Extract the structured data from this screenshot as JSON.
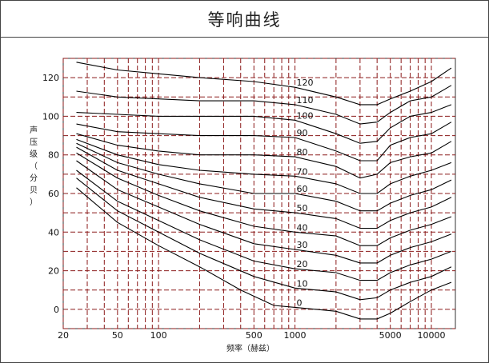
{
  "chart_data": {
    "type": "line",
    "title": "等响曲线",
    "xlabel": "频率（赫兹）",
    "ylabel": "声压级（分贝）",
    "xscale": "log",
    "xlim": [
      20,
      15000
    ],
    "ylim": [
      -10,
      130
    ],
    "grid": true,
    "grid_color": "#8b1a1a",
    "line_color": "#000000",
    "x_tick_labels": [
      {
        "value": 20,
        "label": "20"
      },
      {
        "value": 50,
        "label": "50"
      },
      {
        "value": 100,
        "label": "100"
      },
      {
        "value": 500,
        "label": "500"
      },
      {
        "value": 1000,
        "label": "1000"
      },
      {
        "value": 5000,
        "label": "5000"
      },
      {
        "value": 10000,
        "label": "10000"
      }
    ],
    "y_tick_labels": [
      {
        "value": 0,
        "label": "0"
      },
      {
        "value": 20,
        "label": "20"
      },
      {
        "value": 40,
        "label": "40"
      },
      {
        "value": 60,
        "label": "60"
      },
      {
        "value": 80,
        "label": "80"
      },
      {
        "value": 100,
        "label": "100"
      },
      {
        "value": 120,
        "label": "120"
      }
    ],
    "x_grid": [
      20,
      30,
      40,
      50,
      60,
      70,
      80,
      90,
      100,
      200,
      300,
      400,
      500,
      600,
      700,
      800,
      900,
      1000,
      2000,
      3000,
      4000,
      5000,
      6000,
      7000,
      8000,
      9000,
      10000
    ],
    "y_grid": [
      -10,
      0,
      10,
      20,
      30,
      40,
      50,
      60,
      70,
      80,
      90,
      100,
      110,
      120,
      130
    ],
    "series": [
      {
        "name": "120",
        "x": [
          25,
          50,
          100,
          200,
          500,
          1000,
          2000,
          3000,
          4000,
          5000,
          7000,
          10000,
          14000
        ],
        "y": [
          128,
          124,
          122,
          120,
          118,
          115,
          110,
          106,
          106,
          109,
          113,
          118,
          125
        ]
      },
      {
        "name": "110",
        "x": [
          25,
          50,
          100,
          200,
          500,
          1000,
          2000,
          3000,
          4000,
          5000,
          7000,
          10000,
          14000
        ],
        "y": [
          113,
          110,
          109,
          108,
          108,
          106,
          101,
          96,
          97,
          102,
          108,
          110,
          116
        ]
      },
      {
        "name": "100",
        "x": [
          25,
          50,
          100,
          200,
          500,
          1000,
          2000,
          3000,
          4000,
          5000,
          7000,
          10000,
          14000
        ],
        "y": [
          102,
          101,
          100,
          100,
          100,
          98,
          91,
          86,
          87,
          94,
          100,
          102,
          106
        ]
      },
      {
        "name": "90",
        "x": [
          25,
          50,
          100,
          200,
          500,
          1000,
          2000,
          3000,
          4000,
          5000,
          7000,
          10000,
          14000
        ],
        "y": [
          96,
          92,
          91,
          90,
          90,
          89,
          82,
          77,
          77,
          85,
          89,
          91,
          97
        ]
      },
      {
        "name": "80",
        "x": [
          25,
          50,
          100,
          200,
          500,
          1000,
          2000,
          3000,
          4000,
          5000,
          7000,
          10000,
          14000
        ],
        "y": [
          91,
          85,
          82,
          80,
          80,
          79,
          74,
          68,
          70,
          76,
          79,
          81,
          87
        ]
      },
      {
        "name": "70",
        "x": [
          25,
          50,
          100,
          200,
          500,
          1000,
          2000,
          3000,
          4000,
          5000,
          7000,
          10000,
          14000
        ],
        "y": [
          88,
          80,
          75,
          72,
          70,
          69,
          65,
          60,
          60,
          65,
          69,
          72,
          76
        ]
      },
      {
        "name": "60",
        "x": [
          25,
          50,
          100,
          200,
          500,
          1000,
          2000,
          3000,
          4000,
          5000,
          7000,
          10000,
          14000
        ],
        "y": [
          86,
          76,
          70,
          65,
          60,
          60,
          56,
          51,
          51,
          55,
          59,
          62,
          67
        ]
      },
      {
        "name": "50",
        "x": [
          25,
          50,
          100,
          200,
          500,
          1000,
          2000,
          3000,
          4000,
          5000,
          7000,
          10000,
          14000
        ],
        "y": [
          84,
          72,
          65,
          58,
          52,
          50,
          47,
          42,
          42,
          46,
          50,
          53,
          58
        ]
      },
      {
        "name": "40",
        "x": [
          25,
          50,
          100,
          200,
          500,
          1000,
          2000,
          3000,
          4000,
          5000,
          7000,
          10000,
          14000
        ],
        "y": [
          81,
          68,
          59,
          51,
          43,
          40,
          38,
          33,
          33,
          37,
          41,
          44,
          48
        ]
      },
      {
        "name": "30",
        "x": [
          25,
          50,
          100,
          200,
          500,
          1000,
          2000,
          3000,
          4000,
          5000,
          7000,
          10000,
          14000
        ],
        "y": [
          77,
          62,
          53,
          44,
          34,
          31,
          28,
          24,
          24,
          28,
          32,
          35,
          39
        ]
      },
      {
        "name": "20",
        "x": [
          25,
          50,
          100,
          200,
          500,
          1000,
          2000,
          3000,
          4000,
          5000,
          7000,
          10000,
          14000
        ],
        "y": [
          72,
          56,
          46,
          36,
          25,
          21,
          19,
          15,
          15,
          19,
          23,
          26,
          30
        ]
      },
      {
        "name": "10",
        "x": [
          25,
          50,
          100,
          200,
          500,
          1000,
          2000,
          3000,
          4000,
          5000,
          7000,
          10000,
          14000
        ],
        "y": [
          68,
          51,
          40,
          29,
          17,
          11,
          9,
          5,
          6,
          10,
          14,
          17,
          22
        ]
      },
      {
        "name": "0",
        "x": [
          25,
          50,
          100,
          200,
          400,
          700,
          1000,
          2000,
          3000,
          4000,
          5000,
          7000,
          10000,
          14000
        ],
        "y": [
          63,
          45,
          33,
          22,
          10,
          2,
          1,
          -1,
          -5,
          -5,
          -2,
          4,
          10,
          14
        ]
      }
    ]
  }
}
